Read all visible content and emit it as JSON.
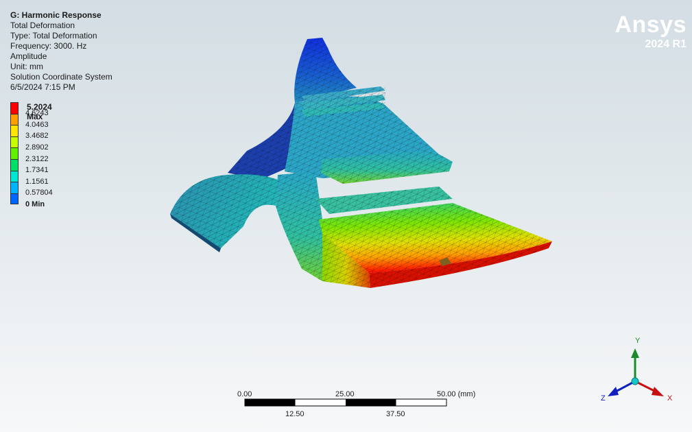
{
  "info": {
    "title": "G: Harmonic Response",
    "lines": [
      "Total Deformation",
      "Type: Total Deformation",
      "Frequency: 3000. Hz",
      "Amplitude",
      "Unit: mm",
      "Solution Coordinate System",
      "6/5/2024 7:15 PM"
    ]
  },
  "legend": {
    "max_label": "5.2024 Max",
    "values": [
      "4.6243",
      "4.0463",
      "3.4682",
      "2.8902",
      "2.3122",
      "1.7341",
      "1.1561",
      "0.57804"
    ],
    "min_label": "0 Min",
    "colors": [
      "#ff0000",
      "#ff9f00",
      "#ffe600",
      "#c8ff00",
      "#63f100",
      "#00e066",
      "#00e6d2",
      "#00b3ff",
      "#0066ff",
      "#0000ff"
    ]
  },
  "brand": {
    "name": "Ansys",
    "version": "2024 R1"
  },
  "scale_bar": {
    "top_labels": [
      "0.00",
      "25.00",
      "50.00 (mm)"
    ],
    "bottom_labels": [
      "12.50",
      "37.50"
    ]
  },
  "triad": {
    "x": "X",
    "y": "Y",
    "z": "Z"
  }
}
